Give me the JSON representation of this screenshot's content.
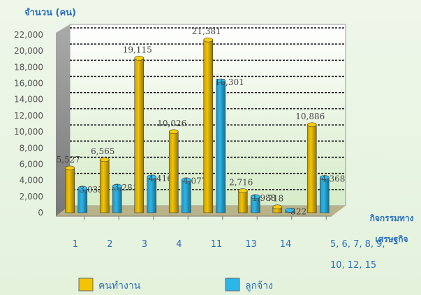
{
  "chart_data": {
    "type": "bar",
    "y_label": "จำนวน (คน)",
    "x_label": "กิจกรรมทาง เศรษฐกิจ",
    "categories": [
      "1",
      "2",
      "3",
      "4",
      "11",
      "13",
      "14",
      "5, 6, 7, 8, 9, 10, 12, 15"
    ],
    "series": [
      {
        "name": "คนทำงาน",
        "color": "#f4c400",
        "values": [
          5527,
          6565,
          19115,
          10026,
          21381,
          2716,
          718,
          10886
        ],
        "value_labels": [
          "5,527",
          "6,565",
          "19,115",
          "10,026",
          "21,381",
          "2,716",
          "718",
          "10,886"
        ]
      },
      {
        "name": "ลูกจ้าง",
        "color": "#2bb6ea",
        "values": [
          3033,
          3281,
          4416,
          4077,
          16301,
          1988,
          322,
          4368
        ],
        "value_labels": [
          "3,033",
          "3,281",
          "4,416",
          "4,077",
          "16,301",
          "1,988",
          "322",
          "4,368"
        ]
      }
    ],
    "ylim": [
      0,
      22000
    ],
    "yticks": [
      0,
      {
        "value": 2000,
        "label": "2,000"
      },
      {
        "value": 4000,
        "label": "4,000"
      },
      {
        "value": 6000,
        "label": "6,000"
      },
      {
        "value": 8000,
        "label": "8,000"
      },
      {
        "value": 10000,
        "label": "10,000"
      },
      {
        "value": 12000,
        "label": "12,000"
      },
      {
        "value": 14000,
        "label": "14,000"
      },
      {
        "value": 16000,
        "label": "16,000"
      },
      {
        "value": 18000,
        "label": "18,000"
      },
      {
        "value": 20000,
        "label": "20,000"
      },
      {
        "value": 22000,
        "label": "22,000"
      }
    ],
    "grid": true
  }
}
